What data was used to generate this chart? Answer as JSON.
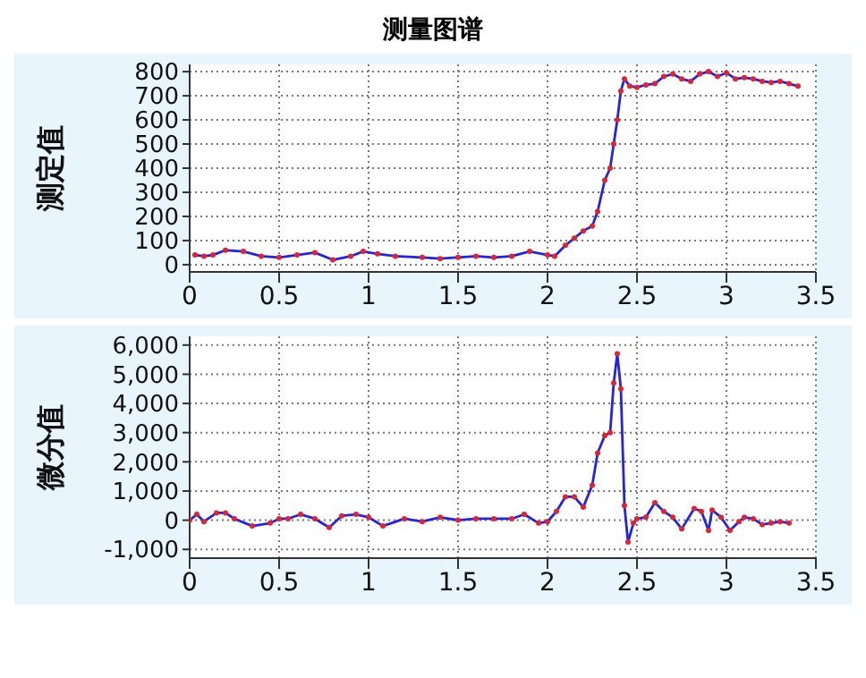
{
  "chart_data": [
    {
      "type": "line",
      "title": "测量图谱",
      "ylabel": "测定值",
      "xlim": [
        0,
        3.5
      ],
      "xticks": [
        0,
        0.5,
        1,
        1.5,
        2,
        2.5,
        3,
        3.5
      ],
      "ylim": [
        -30,
        830
      ],
      "yticks": [
        0,
        100,
        200,
        300,
        400,
        500,
        600,
        700,
        800
      ],
      "grid": true,
      "marker": "circle",
      "line_style": "solid",
      "x": [
        0.03,
        0.08,
        0.13,
        0.2,
        0.3,
        0.4,
        0.5,
        0.6,
        0.7,
        0.8,
        0.9,
        0.97,
        1.05,
        1.15,
        1.3,
        1.4,
        1.5,
        1.6,
        1.7,
        1.8,
        1.9,
        2.0,
        2.04,
        2.1,
        2.15,
        2.2,
        2.25,
        2.28,
        2.32,
        2.35,
        2.37,
        2.39,
        2.41,
        2.43,
        2.46,
        2.5,
        2.55,
        2.6,
        2.65,
        2.7,
        2.75,
        2.8,
        2.85,
        2.9,
        2.95,
        3.0,
        3.05,
        3.1,
        3.15,
        3.2,
        3.25,
        3.3,
        3.35,
        3.4
      ],
      "series": [
        {
          "color": "#2222ee",
          "values": [
            40,
            35,
            40,
            60,
            55,
            35,
            30,
            40,
            50,
            20,
            35,
            55,
            45,
            35,
            30,
            25,
            30,
            35,
            30,
            35,
            55,
            40,
            35,
            80,
            110,
            140,
            160,
            220,
            350,
            400,
            500,
            600,
            720,
            770,
            740,
            735,
            745,
            750,
            780,
            790,
            770,
            760,
            790,
            800,
            780,
            795,
            770,
            775,
            770,
            760,
            755,
            760,
            750,
            740
          ]
        }
      ]
    },
    {
      "type": "line",
      "ylabel": "微分值",
      "xlim": [
        0,
        3.5
      ],
      "xticks": [
        0,
        0.5,
        1,
        1.5,
        2,
        2.5,
        3,
        3.5
      ],
      "ylim": [
        -1300,
        6300
      ],
      "yticks": [
        {
          "value": -1000,
          "label": "-1,000"
        },
        0,
        {
          "value": 1000,
          "label": "1,000"
        },
        {
          "value": 2000,
          "label": "2,000"
        },
        {
          "value": 3000,
          "label": "3,000"
        },
        {
          "value": 4000,
          "label": "4,000"
        },
        {
          "value": 5000,
          "label": "5,000"
        },
        {
          "value": 6000,
          "label": "6,000"
        }
      ],
      "grid": true,
      "marker": "circle",
      "line_style": "solid",
      "x": [
        0,
        0.04,
        0.08,
        0.15,
        0.2,
        0.25,
        0.35,
        0.45,
        0.5,
        0.55,
        0.62,
        0.7,
        0.78,
        0.85,
        0.93,
        1.0,
        1.08,
        1.2,
        1.3,
        1.4,
        1.5,
        1.6,
        1.7,
        1.8,
        1.87,
        1.95,
        2.0,
        2.05,
        2.1,
        2.15,
        2.2,
        2.25,
        2.28,
        2.32,
        2.35,
        2.37,
        2.39,
        2.41,
        2.43,
        2.45,
        2.48,
        2.5,
        2.55,
        2.6,
        2.65,
        2.7,
        2.75,
        2.82,
        2.86,
        2.9,
        2.92,
        2.97,
        3.02,
        3.07,
        3.1,
        3.15,
        3.2,
        3.25,
        3.3,
        3.35
      ],
      "series": [
        {
          "color": "#2222ee",
          "values": [
            0,
            200,
            -50,
            250,
            250,
            50,
            -200,
            -100,
            50,
            50,
            200,
            50,
            -250,
            150,
            200,
            100,
            -200,
            50,
            -50,
            100,
            0,
            50,
            50,
            50,
            200,
            -100,
            -50,
            300,
            800,
            800,
            450,
            1200,
            2300,
            2900,
            3000,
            4700,
            5700,
            4500,
            500,
            -750,
            -100,
            50,
            100,
            600,
            300,
            100,
            -300,
            400,
            300,
            -350,
            350,
            100,
            -350,
            -50,
            100,
            50,
            -150,
            -100,
            -50,
            -100
          ]
        }
      ]
    }
  ]
}
